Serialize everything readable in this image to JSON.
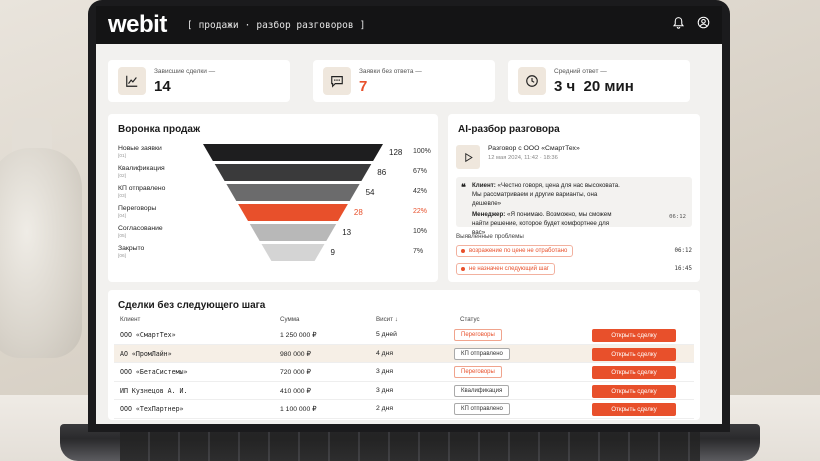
{
  "topbar": {
    "logo": "webit",
    "bracket_open": "[",
    "section": "продажи",
    "separator": "·",
    "page": "разбор разговоров",
    "bracket_close": "]"
  },
  "stats": [
    {
      "label": "Зависшие сделки —",
      "value": "14",
      "icon": "chart-line-icon"
    },
    {
      "label": "Заявки без ответа —",
      "value": "7",
      "icon": "chat-bubble-icon",
      "accent": "#e8502b"
    },
    {
      "label": "Средний ответ —",
      "value": "3 ч  20 мин",
      "icon": "clock-icon"
    }
  ],
  "funnel": {
    "title": "Воронка продаж",
    "stages": [
      {
        "name": "Новые заявки",
        "code": "[01]",
        "count": "128",
        "pct": "100%",
        "value": 128
      },
      {
        "name": "Квалификация",
        "code": "[02]",
        "count": "86",
        "pct": "67%",
        "value": 86
      },
      {
        "name": "КП отправлено",
        "code": "[03]",
        "count": "54",
        "pct": "42%",
        "value": 54
      },
      {
        "name": "Переговоры",
        "code": "[04]",
        "count": "28",
        "pct": "22%",
        "value": 28,
        "highlight": true
      },
      {
        "name": "Согласование",
        "code": "[05]",
        "count": "13",
        "pct": "10%",
        "value": 13
      },
      {
        "name": "Закрыто",
        "code": "[06]",
        "count": "9",
        "pct": "7%",
        "value": 9
      }
    ],
    "colors": [
      "#1e1e1f",
      "#3a3a3b",
      "#6b6b6c",
      "#e8502b",
      "#b8b8b8",
      "#d4d4d4"
    ]
  },
  "ai": {
    "title": "AI-разбор разговора",
    "conversation_title": "Разговор с ООО «СмартТех»",
    "conversation_date": "12 мая 2024, 11:42 · 18:36",
    "client_label": "Клиент:",
    "client_text": "«Честно говоря, цена для нас высоковата. Мы рассматриваем и другие варианты, она дешевле»",
    "manager_label": "Менеджер:",
    "manager_text": "«Я понимаю. Возможно, мы сможем найти решение, которое будет комфортнее для вас»",
    "quote_time": "06:12",
    "issues_label": "Выявленные проблемы",
    "issues": [
      {
        "text": "возражение по цене не отработано",
        "time": "06:12"
      },
      {
        "text": "не назначен следующий шаг",
        "time": "16:45"
      }
    ]
  },
  "deals": {
    "title": "Сделки без следующего шага",
    "columns": [
      "Клиент",
      "Сумма",
      "Висит",
      "Статус"
    ],
    "sort_icon": "↓",
    "button_label": "Открыть сделку",
    "rows": [
      {
        "client": "ООО «СмартТех»",
        "sum": "1 250 000 ₽",
        "hang": "5 дней",
        "status": "Переговоры",
        "status_style": "orange"
      },
      {
        "client": "АО «ПромЛайн»",
        "sum": "980 000 ₽",
        "hang": "4 дня",
        "status": "КП отправлено",
        "status_style": "gray"
      },
      {
        "client": "ООО «БетаСистемы»",
        "sum": "720 000 ₽",
        "hang": "3 дня",
        "status": "Переговоры",
        "status_style": "orange"
      },
      {
        "client": "ИП Кузнецов А. И.",
        "sum": "410 000 ₽",
        "hang": "3 дня",
        "status": "Квалификация",
        "status_style": "gray"
      },
      {
        "client": "ООО «ТехПартнер»",
        "sum": "1 100 000 ₽",
        "hang": "2 дня",
        "status": "КП отправлено",
        "status_style": "gray"
      }
    ]
  }
}
